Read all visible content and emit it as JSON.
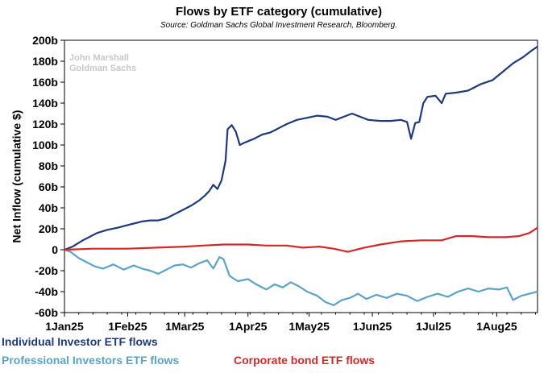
{
  "chart_data": {
    "type": "line",
    "title": "Flows by ETF category (cumulative)",
    "subtitle": "Source: Goldman Sachs Global Investment Research, Bloomberg.",
    "watermark": [
      "John Marshall",
      "Goldman Sachs"
    ],
    "xlabel": "",
    "ylabel": "Net Inflow (cumulative $)",
    "ylim": [
      -60,
      200
    ],
    "y_ticks": [
      -60,
      -40,
      -20,
      0,
      20,
      40,
      60,
      80,
      100,
      120,
      140,
      160,
      180,
      200
    ],
    "y_tick_labels": [
      "-60b",
      "-40b",
      "-20b",
      "0",
      "20b",
      "40b",
      "60b",
      "80b",
      "100b",
      "120b",
      "140b",
      "160b",
      "180b",
      "200b"
    ],
    "x_ticks": [
      "2025-01-01",
      "2025-02-01",
      "2025-03-01",
      "2025-04-01",
      "2025-05-01",
      "2025-06-01",
      "2025-07-01",
      "2025-08-01"
    ],
    "x_tick_labels": [
      "1Jan25",
      "1Feb25",
      "1Mar25",
      "1Apr25",
      "1May25",
      "1Jun25",
      "1Jul25",
      "1Aug25"
    ],
    "xlim": [
      "2025-01-01",
      "2025-08-21"
    ],
    "grid": false,
    "legend_position": "bottom",
    "series": [
      {
        "name": "Individual Investor ETF flows",
        "color": "#1f3a7a",
        "points": [
          [
            "2025-01-01",
            0
          ],
          [
            "2025-01-05",
            3
          ],
          [
            "2025-01-10",
            9
          ],
          [
            "2025-01-14",
            13
          ],
          [
            "2025-01-17",
            16
          ],
          [
            "2025-01-22",
            19
          ],
          [
            "2025-01-27",
            21
          ],
          [
            "2025-01-31",
            23
          ],
          [
            "2025-02-04",
            25
          ],
          [
            "2025-02-08",
            27
          ],
          [
            "2025-02-12",
            28
          ],
          [
            "2025-02-16",
            28
          ],
          [
            "2025-02-20",
            30
          ],
          [
            "2025-02-24",
            34
          ],
          [
            "2025-02-28",
            38
          ],
          [
            "2025-03-04",
            42
          ],
          [
            "2025-03-08",
            47
          ],
          [
            "2025-03-11",
            52
          ],
          [
            "2025-03-13",
            56
          ],
          [
            "2025-03-15",
            62
          ],
          [
            "2025-03-17",
            58
          ],
          [
            "2025-03-19",
            66
          ],
          [
            "2025-03-21",
            85
          ],
          [
            "2025-03-22",
            115
          ],
          [
            "2025-03-24",
            119
          ],
          [
            "2025-03-26",
            113
          ],
          [
            "2025-03-28",
            100
          ],
          [
            "2025-03-30",
            102
          ],
          [
            "2025-04-04",
            106
          ],
          [
            "2025-04-08",
            110
          ],
          [
            "2025-04-12",
            112
          ],
          [
            "2025-04-16",
            116
          ],
          [
            "2025-04-20",
            120
          ],
          [
            "2025-04-25",
            124
          ],
          [
            "2025-04-30",
            126
          ],
          [
            "2025-05-05",
            128
          ],
          [
            "2025-05-10",
            127
          ],
          [
            "2025-05-14",
            124
          ],
          [
            "2025-05-18",
            127
          ],
          [
            "2025-05-22",
            130
          ],
          [
            "2025-05-26",
            127
          ],
          [
            "2025-05-30",
            124
          ],
          [
            "2025-06-05",
            123
          ],
          [
            "2025-06-10",
            123
          ],
          [
            "2025-06-15",
            124
          ],
          [
            "2025-06-18",
            122
          ],
          [
            "2025-06-20",
            106
          ],
          [
            "2025-06-22",
            121
          ],
          [
            "2025-06-24",
            122
          ],
          [
            "2025-06-26",
            140
          ],
          [
            "2025-06-28",
            146
          ],
          [
            "2025-07-02",
            147
          ],
          [
            "2025-07-05",
            140
          ],
          [
            "2025-07-07",
            149
          ],
          [
            "2025-07-12",
            150
          ],
          [
            "2025-07-18",
            152
          ],
          [
            "2025-07-24",
            158
          ],
          [
            "2025-07-30",
            162
          ],
          [
            "2025-08-04",
            170
          ],
          [
            "2025-08-09",
            178
          ],
          [
            "2025-08-14",
            184
          ],
          [
            "2025-08-18",
            190
          ],
          [
            "2025-08-21",
            194
          ]
        ]
      },
      {
        "name": "Professional Investors ETF flows",
        "color": "#5ba3c6",
        "points": [
          [
            "2025-01-01",
            0
          ],
          [
            "2025-01-04",
            -2
          ],
          [
            "2025-01-08",
            -8
          ],
          [
            "2025-01-12",
            -12
          ],
          [
            "2025-01-16",
            -16
          ],
          [
            "2025-01-20",
            -18
          ],
          [
            "2025-01-25",
            -14
          ],
          [
            "2025-01-30",
            -19
          ],
          [
            "2025-02-04",
            -15
          ],
          [
            "2025-02-08",
            -18
          ],
          [
            "2025-02-12",
            -20
          ],
          [
            "2025-02-16",
            -23
          ],
          [
            "2025-02-20",
            -19
          ],
          [
            "2025-02-24",
            -15
          ],
          [
            "2025-02-28",
            -14
          ],
          [
            "2025-03-04",
            -17
          ],
          [
            "2025-03-08",
            -13
          ],
          [
            "2025-03-12",
            -10
          ],
          [
            "2025-03-15",
            -18
          ],
          [
            "2025-03-18",
            -7
          ],
          [
            "2025-03-20",
            -9
          ],
          [
            "2025-03-23",
            -25
          ],
          [
            "2025-03-27",
            -30
          ],
          [
            "2025-04-01",
            -28
          ],
          [
            "2025-04-05",
            -33
          ],
          [
            "2025-04-10",
            -38
          ],
          [
            "2025-04-14",
            -33
          ],
          [
            "2025-04-18",
            -36
          ],
          [
            "2025-04-22",
            -31
          ],
          [
            "2025-04-26",
            -35
          ],
          [
            "2025-04-30",
            -40
          ],
          [
            "2025-05-05",
            -44
          ],
          [
            "2025-05-09",
            -50
          ],
          [
            "2025-05-13",
            -53
          ],
          [
            "2025-05-17",
            -48
          ],
          [
            "2025-05-21",
            -46
          ],
          [
            "2025-05-25",
            -42
          ],
          [
            "2025-05-29",
            -47
          ],
          [
            "2025-06-03",
            -43
          ],
          [
            "2025-06-08",
            -46
          ],
          [
            "2025-06-13",
            -42
          ],
          [
            "2025-06-18",
            -44
          ],
          [
            "2025-06-23",
            -49
          ],
          [
            "2025-06-28",
            -45
          ],
          [
            "2025-07-03",
            -42
          ],
          [
            "2025-07-08",
            -45
          ],
          [
            "2025-07-13",
            -40
          ],
          [
            "2025-07-18",
            -37
          ],
          [
            "2025-07-23",
            -40
          ],
          [
            "2025-07-28",
            -37
          ],
          [
            "2025-08-02",
            -38
          ],
          [
            "2025-08-06",
            -36
          ],
          [
            "2025-08-09",
            -48
          ],
          [
            "2025-08-13",
            -44
          ],
          [
            "2025-08-17",
            -42
          ],
          [
            "2025-08-21",
            -40
          ]
        ]
      },
      {
        "name": "Corporate bond ETF flows",
        "color": "#d62728",
        "points": [
          [
            "2025-01-01",
            0
          ],
          [
            "2025-01-15",
            1
          ],
          [
            "2025-02-01",
            1
          ],
          [
            "2025-02-15",
            2
          ],
          [
            "2025-03-01",
            3
          ],
          [
            "2025-03-10",
            4
          ],
          [
            "2025-03-20",
            5
          ],
          [
            "2025-04-01",
            5
          ],
          [
            "2025-04-10",
            4
          ],
          [
            "2025-04-20",
            4
          ],
          [
            "2025-04-28",
            2
          ],
          [
            "2025-05-06",
            3
          ],
          [
            "2025-05-13",
            1
          ],
          [
            "2025-05-20",
            -2
          ],
          [
            "2025-05-28",
            2
          ],
          [
            "2025-06-05",
            5
          ],
          [
            "2025-06-15",
            8
          ],
          [
            "2025-06-25",
            9
          ],
          [
            "2025-07-05",
            9
          ],
          [
            "2025-07-12",
            13
          ],
          [
            "2025-07-20",
            13
          ],
          [
            "2025-07-28",
            12
          ],
          [
            "2025-08-05",
            12
          ],
          [
            "2025-08-12",
            13
          ],
          [
            "2025-08-17",
            16
          ],
          [
            "2025-08-21",
            21
          ]
        ]
      }
    ]
  }
}
